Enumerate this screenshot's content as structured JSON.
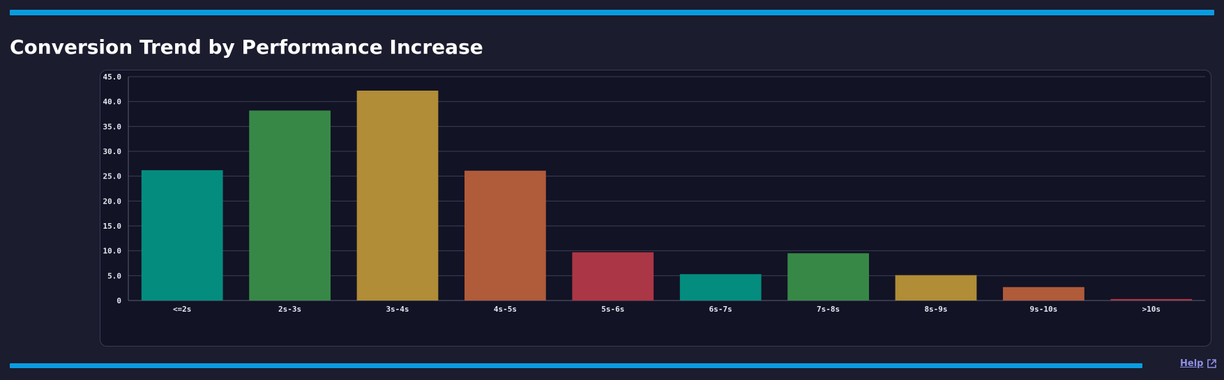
{
  "page": {
    "title": "Conversion Trend by Performance Increase",
    "help_label": "Help",
    "accent_color": "#0a9ce1",
    "link_color": "#8f8fe6"
  },
  "chart_data": {
    "type": "bar",
    "title": "Conversion Trend by Performance Increase",
    "categories": [
      "<=2s",
      "2s-3s",
      "3s-4s",
      "4s-5s",
      "5s-6s",
      "6s-7s",
      "7s-8s",
      "8s-9s",
      "9s-10s",
      ">10s"
    ],
    "values": [
      26.2,
      38.2,
      42.2,
      26.1,
      9.7,
      5.3,
      9.5,
      5.1,
      2.7,
      0.3
    ],
    "colors": [
      "#048d7f",
      "#378847",
      "#b08d36",
      "#b05b3a",
      "#ab3646",
      "#048d7f",
      "#378847",
      "#b08d36",
      "#b05b3a",
      "#ab3646"
    ],
    "y_ticks": [
      "0",
      "5.0",
      "10.0",
      "15.0",
      "20.0",
      "25.0",
      "30.0",
      "35.0",
      "40.0",
      "45.0"
    ],
    "ylim": [
      0,
      45
    ],
    "xlabel": "",
    "ylabel": "",
    "grid": true,
    "legend": "none"
  }
}
